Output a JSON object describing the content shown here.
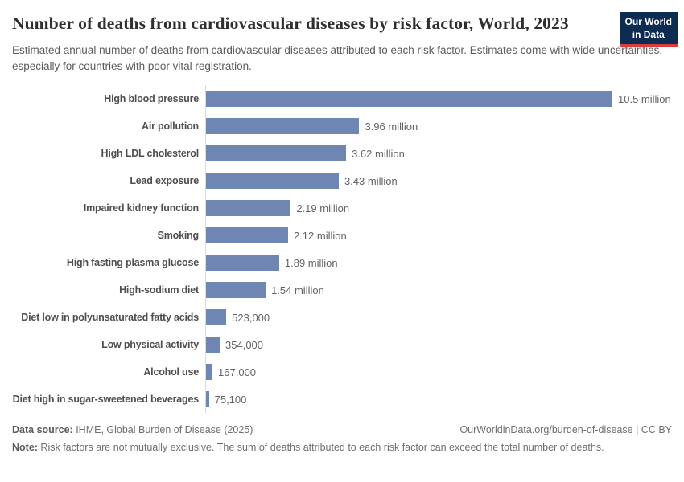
{
  "chart_data": {
    "type": "bar",
    "orientation": "horizontal",
    "title": "Number of deaths from cardiovascular diseases by risk factor, World, 2023",
    "subtitle": "Estimated annual number of deaths from cardiovascular diseases attributed to each risk factor. Estimates come with wide uncertainties, especially for countries with poor vital registration.",
    "categories": [
      "High blood pressure",
      "Air pollution",
      "High LDL cholesterol",
      "Lead exposure",
      "Impaired kidney function",
      "Smoking",
      "High fasting plasma glucose",
      "High-sodium diet",
      "Diet low in polyunsaturated fatty acids",
      "Low physical activity",
      "Alcohol use",
      "Diet high in sugar-sweetened beverages"
    ],
    "values": [
      10500000,
      3960000,
      3620000,
      3430000,
      2190000,
      2120000,
      1890000,
      1540000,
      523000,
      354000,
      167000,
      75100
    ],
    "value_labels": [
      "10.5 million",
      "3.96 million",
      "3.62 million",
      "3.43 million",
      "2.19 million",
      "2.12 million",
      "1.89 million",
      "1.54 million",
      "523,000",
      "354,000",
      "167,000",
      "75,100"
    ],
    "xlim": [
      0,
      10500000
    ],
    "grid": false,
    "legend": "none"
  },
  "colors": {
    "bar": "#7086b2",
    "axis_line": "#dcdcdc",
    "logo_navy": "#0c2c52",
    "logo_red": "#dc3c3c"
  },
  "header": {
    "logo": {
      "line1": "Our World",
      "line2": "in Data"
    }
  },
  "footer": {
    "datasource_prefix": "Data source:",
    "datasource_text": " IHME, Global Burden of Disease (2025)",
    "link_text": "OurWorldinData.org/burden-of-disease",
    "license_separator": " | ",
    "license_text": "CC BY",
    "note_prefix": "Note:",
    "note_text": " Risk factors are not mutually exclusive. The sum of deaths attributed to each risk factor can exceed the total number of deaths."
  }
}
